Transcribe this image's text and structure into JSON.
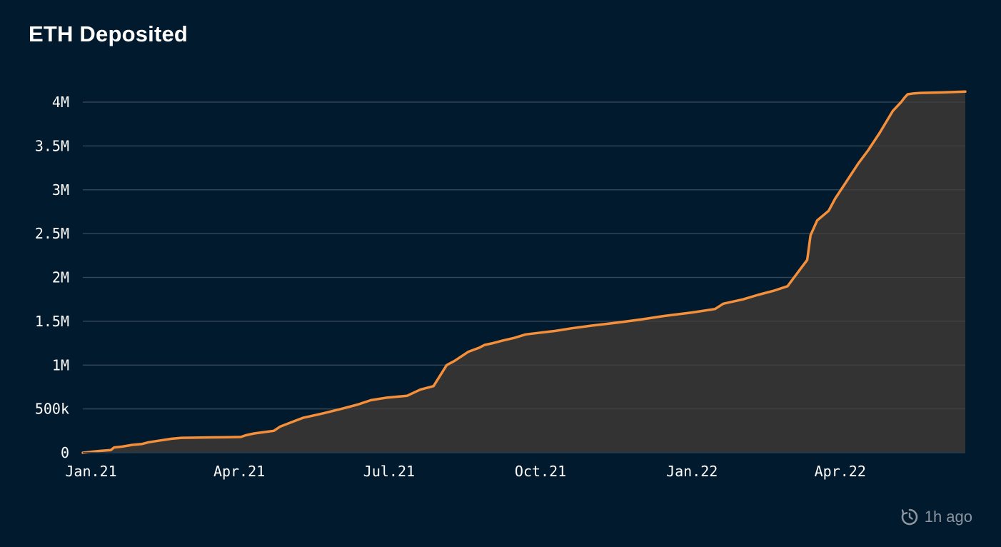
{
  "title": "ETH Deposited",
  "updated": "1h ago",
  "icons": {
    "refresh": "refresh-clock-icon"
  },
  "colors": {
    "background": "#011a2e",
    "line": "#f58f3a",
    "area": "#333333",
    "grid": "#1c3d55",
    "text": "#ffffff",
    "muted": "#8c949e"
  },
  "chart_data": {
    "type": "area",
    "title": "",
    "xlabel": "",
    "ylabel": "",
    "x_ticks": [
      "Jan.21",
      "Apr.21",
      "Jul.21",
      "Oct.21",
      "Jan.22",
      "Apr.22"
    ],
    "y_ticks": [
      0,
      500000,
      1000000,
      1500000,
      2000000,
      2500000,
      3000000,
      3500000,
      4000000
    ],
    "y_tick_labels": [
      "0",
      "500k",
      "1M",
      "1.5M",
      "2M",
      "2.5M",
      "3M",
      "3.5M",
      "4M"
    ],
    "xlim": [
      "2020-12-27",
      "2022-06-16"
    ],
    "ylim": [
      0,
      4000000
    ],
    "grid": "horizontal",
    "legend": "none",
    "series": [
      {
        "x": [
          "2020-12-27",
          "2021-01-06",
          "2021-01-13",
          "2021-01-15",
          "2021-01-20",
          "2021-01-26",
          "2021-02-01",
          "2021-02-05",
          "2021-02-12",
          "2021-02-19",
          "2021-02-25",
          "2021-03-05",
          "2021-03-15",
          "2021-03-25",
          "2021-04-02",
          "2021-04-05",
          "2021-04-10",
          "2021-04-22",
          "2021-04-26",
          "2021-05-03",
          "2021-05-10",
          "2021-05-15",
          "2021-05-22",
          "2021-06-02",
          "2021-06-12",
          "2021-06-20",
          "2021-06-30",
          "2021-07-12",
          "2021-07-20",
          "2021-07-28",
          "2021-08-05",
          "2021-08-10",
          "2021-08-18",
          "2021-08-25",
          "2021-08-28",
          "2021-09-02",
          "2021-09-08",
          "2021-09-15",
          "2021-09-22",
          "2021-10-01",
          "2021-10-10",
          "2021-10-20",
          "2021-11-01",
          "2021-11-15",
          "2021-12-01",
          "2021-12-15",
          "2022-01-01",
          "2022-01-15",
          "2022-01-20",
          "2022-02-01",
          "2022-02-10",
          "2022-02-20",
          "2022-02-28",
          "2022-03-04",
          "2022-03-08",
          "2022-03-12",
          "2022-03-14",
          "2022-03-18",
          "2022-03-25",
          "2022-03-29",
          "2022-04-05",
          "2022-04-12",
          "2022-04-18",
          "2022-04-25",
          "2022-05-03",
          "2022-05-08",
          "2022-05-10",
          "2022-05-12",
          "2022-05-16",
          "2022-05-20",
          "2022-06-01",
          "2022-06-16"
        ],
        "y": [
          0,
          20000,
          30000,
          60000,
          70000,
          90000,
          100000,
          120000,
          140000,
          160000,
          170000,
          172000,
          175000,
          178000,
          180000,
          200000,
          220000,
          250000,
          300000,
          350000,
          400000,
          420000,
          450000,
          500000,
          550000,
          600000,
          630000,
          650000,
          720000,
          760000,
          1000000,
          1050000,
          1150000,
          1200000,
          1230000,
          1250000,
          1280000,
          1310000,
          1350000,
          1370000,
          1390000,
          1420000,
          1450000,
          1480000,
          1520000,
          1560000,
          1600000,
          1640000,
          1700000,
          1750000,
          1800000,
          1850000,
          1900000,
          2000000,
          2100000,
          2200000,
          2480000,
          2650000,
          2760000,
          2900000,
          3100000,
          3300000,
          3450000,
          3650000,
          3900000,
          4000000,
          4050000,
          4090000,
          4100000,
          4105000,
          4110000,
          4120000
        ]
      }
    ]
  }
}
